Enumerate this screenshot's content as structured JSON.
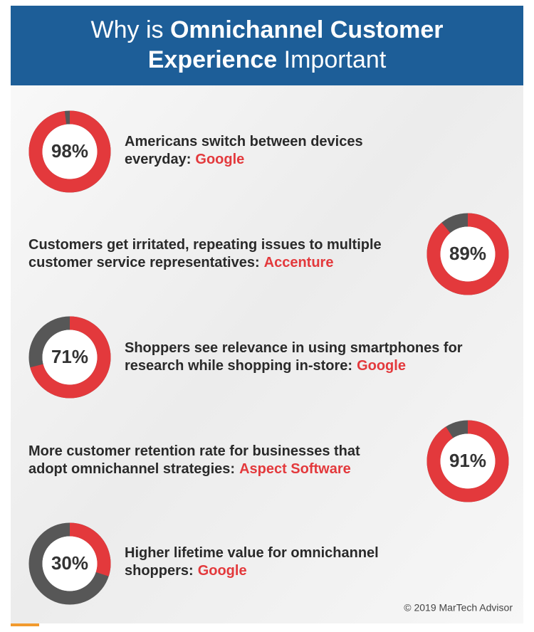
{
  "header": {
    "title_lead": "Why is",
    "title_bold_1": "Omnichannel Customer",
    "title_bold_2": "Experience",
    "title_tail": "Important"
  },
  "items": [
    {
      "value": 98,
      "value_label": "98%",
      "lines": [
        "Americans switch between devices",
        "everyday:"
      ],
      "source": "Google"
    },
    {
      "value": 89,
      "value_label": "89%",
      "lines": [
        "Customers get irritated, repeating issues to multiple",
        "customer service representatives:"
      ],
      "source": "Accenture"
    },
    {
      "value": 71,
      "value_label": "71%",
      "lines": [
        "Shoppers see relevance in using smartphones for",
        "research while shopping in-store:"
      ],
      "source": "Google"
    },
    {
      "value": 91,
      "value_label": "91%",
      "lines": [
        "More customer retention rate for businesses that",
        "adopt omnichannel strategies:"
      ],
      "source": "Aspect Software"
    },
    {
      "value": 30,
      "value_label": "30%",
      "lines": [
        "Higher lifetime value for omnichannel",
        "shoppers:"
      ],
      "source": "Google"
    }
  ],
  "footer": "© 2019 MarTech Advisor"
}
